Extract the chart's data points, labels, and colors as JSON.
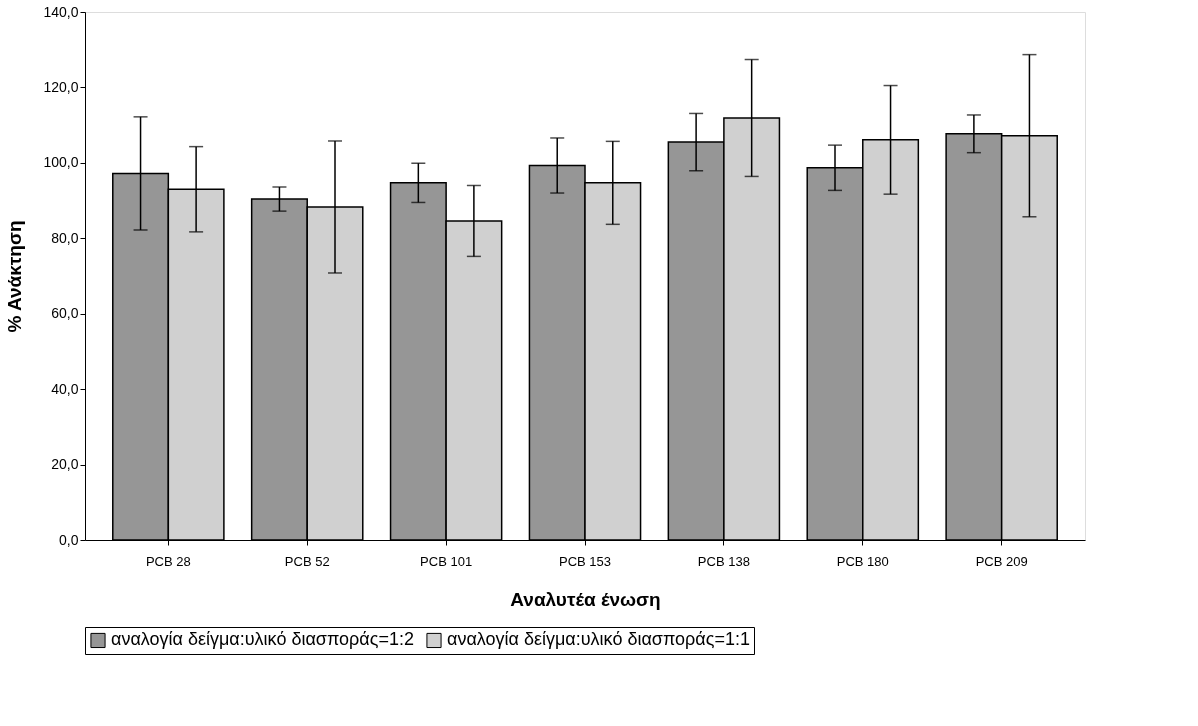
{
  "chart_data": {
    "type": "bar",
    "xlabel": "Αναλυτέα ένωση",
    "ylabel": "% Ανάκτηση",
    "categories": [
      "PCB 28",
      "PCB 52",
      "PCB 101",
      "PCB 153",
      "PCB 138",
      "PCB 180",
      "PCB 209"
    ],
    "series": [
      {
        "name": "αναλογία δείγμα:υλικό διασποράς=1:2",
        "color": "#969696",
        "values": [
          97.2,
          90.4,
          94.7,
          99.3,
          105.5,
          98.7,
          107.7
        ],
        "errors": [
          15.0,
          3.2,
          5.2,
          7.3,
          7.6,
          6.0,
          5.0
        ]
      },
      {
        "name": "αναλογία δείγμα:υλικό διασποράς=1:1",
        "color": "#d0d0d0",
        "values": [
          93.0,
          88.3,
          84.6,
          94.7,
          111.9,
          106.1,
          107.2
        ],
        "errors": [
          11.3,
          17.5,
          9.4,
          11.0,
          15.5,
          14.4,
          21.5
        ]
      }
    ],
    "ylim": [
      0,
      140
    ],
    "yticks": [
      {
        "value": 0,
        "label": "0,0"
      },
      {
        "value": 20,
        "label": "20,0"
      },
      {
        "value": 40,
        "label": "40,0"
      },
      {
        "value": 60,
        "label": "60,0"
      },
      {
        "value": 80,
        "label": "80,0"
      },
      {
        "value": 100,
        "label": "100,0"
      },
      {
        "value": 120,
        "label": "120,0"
      },
      {
        "value": 140,
        "label": "140,0"
      }
    ],
    "grid": false,
    "legend": "bottom"
  }
}
